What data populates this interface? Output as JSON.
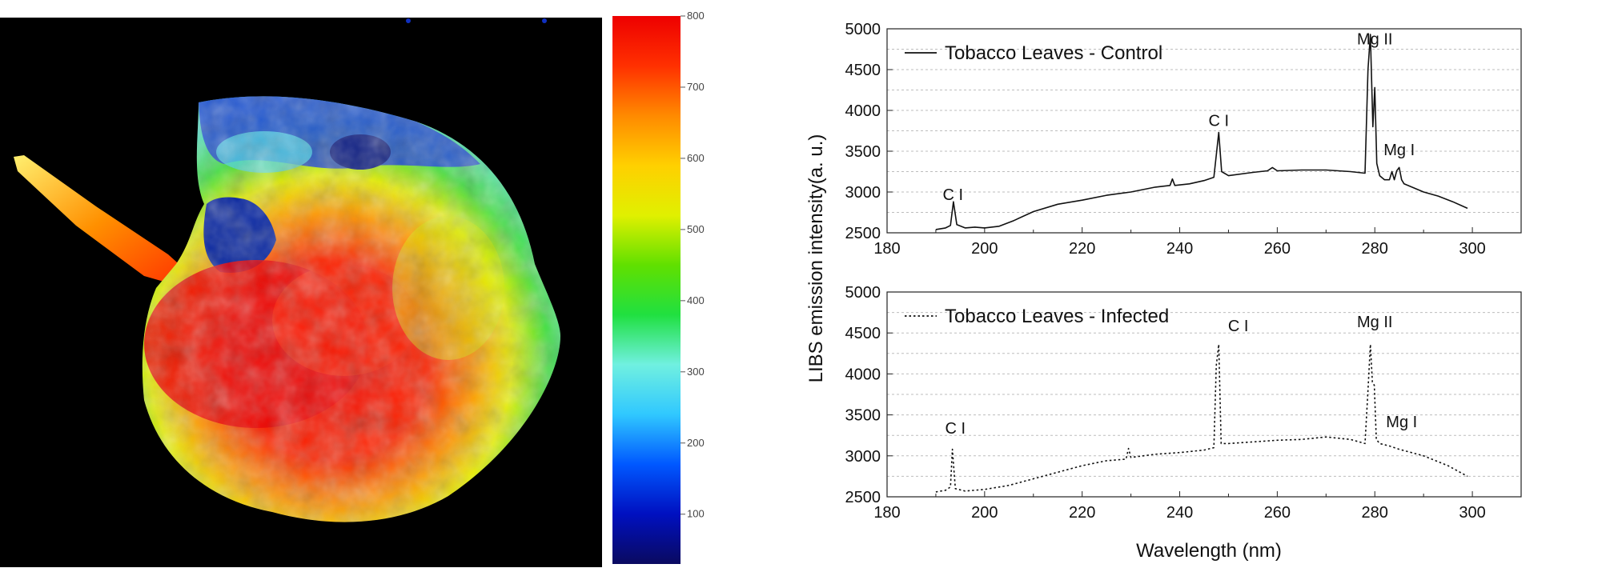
{
  "thermal_image": {
    "colorbar": {
      "ticks": [
        800,
        700,
        600,
        500,
        400,
        300,
        200,
        100
      ],
      "range": [
        30,
        800
      ],
      "colors": [
        "#0a0a60",
        "#0010c0",
        "#0058ff",
        "#30c8ff",
        "#70f0e0",
        "#20e040",
        "#60e000",
        "#e0f000",
        "#ffd000",
        "#ff8a00",
        "#ff3000",
        "#ee0000"
      ]
    }
  },
  "chart_data": [
    {
      "type": "line",
      "legend": "Tobacco Leaves - Control",
      "line_style": "solid",
      "ylabel": "LIBS emission intensity(a. u.)",
      "xlim": [
        180,
        310
      ],
      "ylim": [
        2500,
        5000
      ],
      "x_ticks": [
        "180",
        "200",
        "220",
        "240",
        "260",
        "280",
        "300"
      ],
      "y_ticks": [
        "2500",
        "3000",
        "3500",
        "4000",
        "4500",
        "5000"
      ],
      "grid": "horizontal-dashed",
      "legend_position": "top-left",
      "series": [
        {
          "x": [
            190,
            192,
            193,
            193.6,
            194.3,
            196,
            198,
            200,
            203,
            206,
            210,
            215,
            220,
            225,
            230,
            235,
            238,
            238.5,
            239,
            242,
            245,
            247,
            247.5,
            248,
            248.6,
            250,
            255,
            258,
            259,
            260,
            265,
            270,
            275,
            278,
            278.6,
            279.1,
            279.6,
            280,
            280.4,
            281,
            282,
            283,
            283.5,
            284,
            284.5,
            285,
            285.5,
            286,
            288,
            290,
            293,
            296,
            299
          ],
          "y": [
            2540,
            2560,
            2590,
            2880,
            2600,
            2560,
            2570,
            2560,
            2580,
            2650,
            2760,
            2850,
            2900,
            2960,
            3000,
            3060,
            3080,
            3160,
            3080,
            3100,
            3140,
            3180,
            3450,
            3730,
            3250,
            3200,
            3240,
            3260,
            3300,
            3260,
            3270,
            3270,
            3250,
            3230,
            4500,
            4930,
            3800,
            4280,
            3350,
            3200,
            3150,
            3150,
            3250,
            3150,
            3260,
            3300,
            3150,
            3100,
            3050,
            3000,
            2950,
            2880,
            2800
          ]
        }
      ],
      "annotations": [
        {
          "text": "C I",
          "x": 193.5,
          "y": 2900
        },
        {
          "text": "C I",
          "x": 248,
          "y": 3810
        },
        {
          "text": "Mg II",
          "x": 280,
          "y": 4810
        },
        {
          "text": "Mg I",
          "x": 285,
          "y": 3450
        }
      ]
    },
    {
      "type": "line",
      "legend": "Tobacco Leaves - Infected",
      "line_style": "dotted",
      "xlabel": "Wavelength (nm)",
      "xlim": [
        180,
        310
      ],
      "ylim": [
        2500,
        5000
      ],
      "x_ticks": [
        "180",
        "200",
        "220",
        "240",
        "260",
        "280",
        "300"
      ],
      "y_ticks": [
        "2500",
        "3000",
        "3500",
        "4000",
        "4500",
        "5000"
      ],
      "grid": "horizontal-dashed",
      "legend_position": "top-left",
      "series": [
        {
          "x": [
            190,
            192,
            193,
            193.4,
            194,
            196,
            200,
            205,
            210,
            215,
            220,
            225,
            229,
            229.5,
            230,
            235,
            240,
            245,
            247,
            247.5,
            248,
            248.5,
            250,
            255,
            260,
            265,
            270,
            275,
            278,
            278.6,
            279.1,
            279.5,
            279.9,
            280.3,
            281,
            283,
            285,
            290,
            295,
            299
          ],
          "y": [
            2560,
            2580,
            2620,
            3080,
            2600,
            2570,
            2590,
            2640,
            2720,
            2800,
            2880,
            2940,
            2960,
            3090,
            2980,
            3020,
            3040,
            3070,
            3100,
            4100,
            4360,
            3150,
            3150,
            3170,
            3190,
            3200,
            3230,
            3200,
            3150,
            3800,
            4360,
            3900,
            3860,
            3200,
            3150,
            3120,
            3080,
            3000,
            2880,
            2750
          ]
        }
      ],
      "annotations": [
        {
          "text": "C I",
          "x": 194,
          "y": 3270
        },
        {
          "text": "C I",
          "x": 252,
          "y": 4520
        },
        {
          "text": "Mg II",
          "x": 280,
          "y": 4570
        },
        {
          "text": "Mg I",
          "x": 285.5,
          "y": 3350
        }
      ]
    }
  ]
}
